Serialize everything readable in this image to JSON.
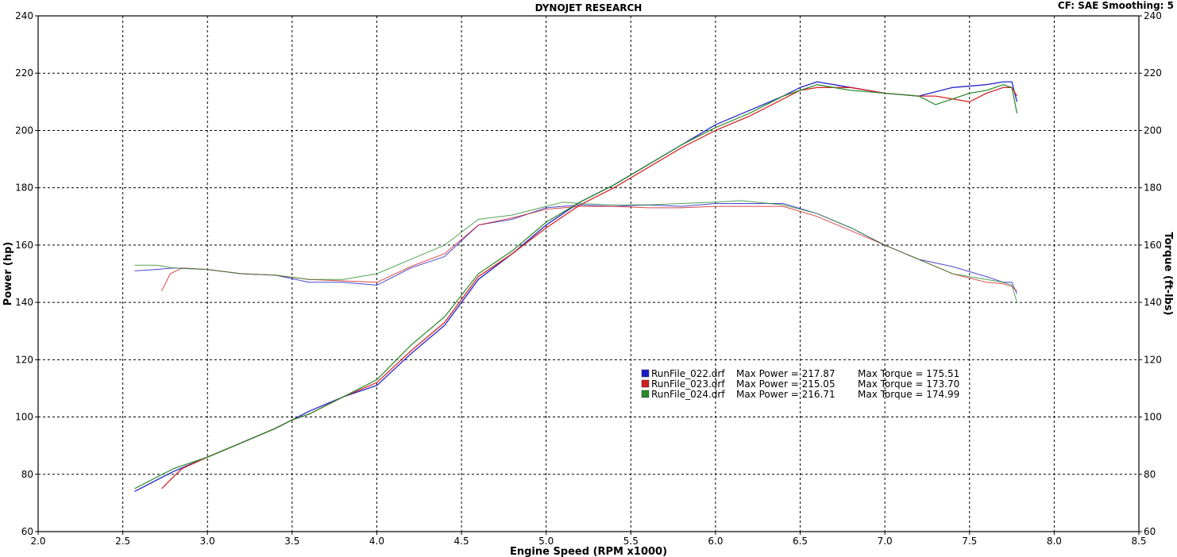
{
  "header": {
    "title": "DYNOJET RESEARCH",
    "cf_label": "CF: SAE  Smoothing: 5"
  },
  "chart_data": {
    "type": "line",
    "xlabel": "Engine Speed (RPM x1000)",
    "ylabel_left": "Power (hp)",
    "ylabel_right": "Torque (ft-lbs)",
    "xlim": [
      2.0,
      8.5
    ],
    "ylim": [
      60,
      240
    ],
    "x_ticks": [
      "2.0",
      "2.5",
      "3.0",
      "3.5",
      "4.0",
      "4.5",
      "5.0",
      "5.5",
      "6.0",
      "6.5",
      "7.0",
      "7.5",
      "8.0",
      "8.5"
    ],
    "y_ticks": [
      "60",
      "80",
      "100",
      "120",
      "140",
      "160",
      "180",
      "200",
      "220",
      "240"
    ],
    "grid": true,
    "legend_position": "center-right",
    "series": [
      {
        "name": "RunFile_022.drf",
        "color": "#1a1ac8",
        "max_power_label": "Max Power = 217.87",
        "max_torque_label": "Max Torque = 175.51",
        "power": {
          "x": [
            2.57,
            2.7,
            2.8,
            3.0,
            3.2,
            3.4,
            3.5,
            3.6,
            3.8,
            4.0,
            4.2,
            4.4,
            4.6,
            4.8,
            5.0,
            5.2,
            5.4,
            5.6,
            5.8,
            6.0,
            6.2,
            6.4,
            6.5,
            6.6,
            6.7,
            6.8,
            7.0,
            7.2,
            7.4,
            7.6,
            7.7,
            7.75,
            7.78
          ],
          "y": [
            74,
            78,
            81,
            86,
            91,
            96,
            99,
            102,
            107,
            111,
            122,
            132,
            148,
            157,
            167,
            175,
            181,
            188,
            195,
            202,
            207,
            212,
            215,
            217,
            216,
            215,
            213,
            212,
            215,
            216,
            217,
            217,
            210
          ]
        },
        "torque": {
          "x": [
            2.57,
            2.7,
            2.8,
            3.0,
            3.2,
            3.4,
            3.6,
            3.8,
            4.0,
            4.2,
            4.4,
            4.6,
            4.8,
            5.0,
            5.2,
            5.4,
            5.6,
            5.8,
            6.0,
            6.2,
            6.4,
            6.6,
            6.8,
            7.0,
            7.2,
            7.4,
            7.6,
            7.7,
            7.75,
            7.78
          ],
          "y": [
            151,
            151.5,
            152,
            151.5,
            150,
            149.5,
            147,
            147,
            146,
            152,
            156,
            167,
            169,
            173,
            174,
            173.5,
            174,
            173.5,
            174.5,
            174.5,
            174.5,
            171,
            166,
            160,
            155,
            152.5,
            149,
            147,
            147,
            143
          ]
        }
      },
      {
        "name": "RunFile_023.drf",
        "color": "#d21e1e",
        "max_power_label": "Max Power = 215.05",
        "max_torque_label": "Max Torque = 173.70",
        "power": {
          "x": [
            2.73,
            2.78,
            2.85,
            3.0,
            3.2,
            3.4,
            3.5,
            3.6,
            3.8,
            4.0,
            4.2,
            4.4,
            4.6,
            4.8,
            5.0,
            5.2,
            5.4,
            5.6,
            5.8,
            6.0,
            6.2,
            6.4,
            6.5,
            6.6,
            6.7,
            6.8,
            7.0,
            7.2,
            7.3,
            7.4,
            7.5,
            7.6,
            7.7,
            7.75,
            7.78
          ],
          "y": [
            75,
            78,
            82,
            86,
            91,
            96,
            99,
            101,
            107,
            112,
            123,
            133,
            149,
            157,
            166,
            174,
            180,
            187,
            194,
            200,
            205,
            211,
            214,
            215,
            215,
            215,
            213,
            212,
            212,
            211,
            210,
            213,
            215,
            215,
            212
          ]
        },
        "torque": {
          "x": [
            2.73,
            2.78,
            2.85,
            3.0,
            3.2,
            3.4,
            3.6,
            3.8,
            4.0,
            4.2,
            4.4,
            4.6,
            4.8,
            5.0,
            5.2,
            5.4,
            5.6,
            5.8,
            6.0,
            6.2,
            6.4,
            6.6,
            6.8,
            7.0,
            7.2,
            7.4,
            7.6,
            7.7,
            7.75,
            7.78
          ],
          "y": [
            144,
            150,
            152,
            151.5,
            150,
            149.5,
            148,
            147.5,
            147,
            152.5,
            157,
            167,
            169.5,
            172.5,
            173.5,
            173.5,
            173,
            173,
            173.5,
            173.5,
            173.5,
            170,
            165,
            160,
            155,
            150,
            147,
            146.5,
            145.5,
            144
          ]
        }
      },
      {
        "name": "RunFile_024.drf",
        "color": "#2a8a2a",
        "max_power_label": "Max Power = 216.71",
        "max_torque_label": "Max Torque = 174.99",
        "power": {
          "x": [
            2.57,
            2.7,
            2.8,
            3.0,
            3.2,
            3.4,
            3.5,
            3.6,
            3.8,
            4.0,
            4.2,
            4.4,
            4.6,
            4.8,
            5.0,
            5.2,
            5.4,
            5.6,
            5.8,
            6.0,
            6.2,
            6.4,
            6.5,
            6.6,
            6.7,
            6.8,
            7.0,
            7.2,
            7.3,
            7.4,
            7.5,
            7.6,
            7.7,
            7.75,
            7.78
          ],
          "y": [
            75,
            79,
            82,
            86,
            91,
            96,
            99,
            101,
            107,
            113,
            125,
            135,
            150,
            158,
            168,
            175,
            181,
            188,
            195,
            201,
            206,
            212,
            214,
            216,
            215,
            214,
            213,
            212,
            209,
            211,
            213,
            214,
            216,
            215,
            206
          ]
        },
        "torque": {
          "x": [
            2.57,
            2.7,
            2.8,
            3.0,
            3.2,
            3.4,
            3.6,
            3.8,
            4.0,
            4.2,
            4.4,
            4.6,
            4.8,
            5.0,
            5.1,
            5.2,
            5.4,
            5.6,
            5.8,
            6.0,
            6.15,
            6.4,
            6.6,
            6.8,
            7.0,
            7.2,
            7.4,
            7.6,
            7.7,
            7.75,
            7.78
          ],
          "y": [
            153,
            153,
            152,
            151.5,
            150,
            149.5,
            148,
            148,
            150,
            155,
            160,
            169,
            170.5,
            173.5,
            175,
            174.5,
            174,
            174,
            174.5,
            175,
            175.5,
            174,
            171,
            166,
            160,
            155,
            150,
            148,
            147,
            146,
            140
          ]
        }
      }
    ]
  }
}
